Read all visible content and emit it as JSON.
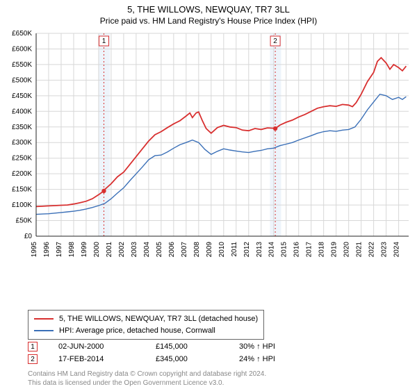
{
  "title": "5, THE WILLOWS, NEWQUAY, TR7 3LL",
  "subtitle": "Price paid vs. HM Land Registry's House Price Index (HPI)",
  "chart": {
    "type": "line",
    "background_color": "#ffffff",
    "grid_color": "#d7d7d7",
    "axis_color": "#222222",
    "tick_fontsize": 10,
    "tick_color": "#000000",
    "x_years": [
      1995,
      1996,
      1997,
      1998,
      1999,
      2000,
      2001,
      2002,
      2003,
      2004,
      2005,
      2006,
      2007,
      2008,
      2009,
      2010,
      2011,
      2012,
      2013,
      2014,
      2015,
      2016,
      2017,
      2018,
      2019,
      2020,
      2021,
      2022,
      2023,
      2024
    ],
    "y_min": 0,
    "y_max": 650000,
    "y_step": 50000,
    "y_prefix": "£",
    "y_suffix_k": "K",
    "highlight_bands": [
      {
        "x_start": 2000.0,
        "x_end": 2000.9,
        "fill": "#eef4fb"
      },
      {
        "x_start": 2013.7,
        "x_end": 2014.6,
        "fill": "#eef4fb"
      }
    ],
    "event_marker_lines": [
      {
        "x": 2000.42,
        "color": "#d82f2f",
        "dash": "2,3"
      },
      {
        "x": 2014.13,
        "color": "#d82f2f",
        "dash": "2,3"
      }
    ],
    "series": [
      {
        "name": "price_paid",
        "color": "#d82f2f",
        "width": 1.8,
        "points": [
          [
            1995.0,
            95000
          ],
          [
            1995.5,
            96000
          ],
          [
            1996.0,
            97000
          ],
          [
            1996.5,
            98000
          ],
          [
            1997.0,
            99000
          ],
          [
            1997.5,
            100000
          ],
          [
            1998.0,
            103000
          ],
          [
            1998.5,
            107000
          ],
          [
            1999.0,
            112000
          ],
          [
            1999.5,
            120000
          ],
          [
            2000.0,
            133000
          ],
          [
            2000.42,
            145000
          ],
          [
            2000.5,
            150000
          ],
          [
            2001.0,
            168000
          ],
          [
            2001.5,
            190000
          ],
          [
            2002.0,
            205000
          ],
          [
            2002.5,
            230000
          ],
          [
            2003.0,
            255000
          ],
          [
            2003.5,
            280000
          ],
          [
            2004.0,
            305000
          ],
          [
            2004.5,
            325000
          ],
          [
            2005.0,
            335000
          ],
          [
            2005.5,
            348000
          ],
          [
            2006.0,
            360000
          ],
          [
            2006.5,
            370000
          ],
          [
            2007.0,
            385000
          ],
          [
            2007.3,
            395000
          ],
          [
            2007.5,
            380000
          ],
          [
            2007.8,
            395000
          ],
          [
            2008.0,
            398000
          ],
          [
            2008.3,
            370000
          ],
          [
            2008.6,
            345000
          ],
          [
            2009.0,
            330000
          ],
          [
            2009.5,
            348000
          ],
          [
            2010.0,
            355000
          ],
          [
            2010.5,
            350000
          ],
          [
            2011.0,
            348000
          ],
          [
            2011.5,
            340000
          ],
          [
            2012.0,
            338000
          ],
          [
            2012.5,
            345000
          ],
          [
            2013.0,
            342000
          ],
          [
            2013.5,
            347000
          ],
          [
            2014.0,
            346000
          ],
          [
            2014.13,
            345000
          ],
          [
            2014.5,
            356000
          ],
          [
            2015.0,
            365000
          ],
          [
            2015.5,
            372000
          ],
          [
            2016.0,
            382000
          ],
          [
            2016.5,
            390000
          ],
          [
            2017.0,
            400000
          ],
          [
            2017.5,
            410000
          ],
          [
            2018.0,
            415000
          ],
          [
            2018.5,
            418000
          ],
          [
            2019.0,
            416000
          ],
          [
            2019.5,
            422000
          ],
          [
            2020.0,
            420000
          ],
          [
            2020.3,
            415000
          ],
          [
            2020.6,
            428000
          ],
          [
            2021.0,
            455000
          ],
          [
            2021.5,
            495000
          ],
          [
            2022.0,
            525000
          ],
          [
            2022.3,
            560000
          ],
          [
            2022.6,
            572000
          ],
          [
            2023.0,
            555000
          ],
          [
            2023.3,
            535000
          ],
          [
            2023.6,
            550000
          ],
          [
            2024.0,
            540000
          ],
          [
            2024.3,
            530000
          ],
          [
            2024.6,
            545000
          ]
        ]
      },
      {
        "name": "hpi",
        "color": "#3a6fb7",
        "width": 1.4,
        "points": [
          [
            1995.0,
            70000
          ],
          [
            1995.5,
            71000
          ],
          [
            1996.0,
            72000
          ],
          [
            1996.5,
            74000
          ],
          [
            1997.0,
            76000
          ],
          [
            1997.5,
            78000
          ],
          [
            1998.0,
            80000
          ],
          [
            1998.5,
            83000
          ],
          [
            1999.0,
            87000
          ],
          [
            1999.5,
            92000
          ],
          [
            2000.0,
            98000
          ],
          [
            2000.5,
            105000
          ],
          [
            2001.0,
            120000
          ],
          [
            2001.5,
            138000
          ],
          [
            2002.0,
            155000
          ],
          [
            2002.5,
            178000
          ],
          [
            2003.0,
            200000
          ],
          [
            2003.5,
            222000
          ],
          [
            2004.0,
            245000
          ],
          [
            2004.5,
            258000
          ],
          [
            2005.0,
            260000
          ],
          [
            2005.5,
            270000
          ],
          [
            2006.0,
            282000
          ],
          [
            2006.5,
            293000
          ],
          [
            2007.0,
            300000
          ],
          [
            2007.5,
            308000
          ],
          [
            2008.0,
            300000
          ],
          [
            2008.5,
            278000
          ],
          [
            2009.0,
            262000
          ],
          [
            2009.5,
            272000
          ],
          [
            2010.0,
            280000
          ],
          [
            2010.5,
            276000
          ],
          [
            2011.0,
            273000
          ],
          [
            2011.5,
            270000
          ],
          [
            2012.0,
            268000
          ],
          [
            2012.5,
            272000
          ],
          [
            2013.0,
            275000
          ],
          [
            2013.5,
            280000
          ],
          [
            2014.0,
            282000
          ],
          [
            2014.5,
            290000
          ],
          [
            2015.0,
            295000
          ],
          [
            2015.5,
            300000
          ],
          [
            2016.0,
            308000
          ],
          [
            2016.5,
            315000
          ],
          [
            2017.0,
            322000
          ],
          [
            2017.5,
            330000
          ],
          [
            2018.0,
            335000
          ],
          [
            2018.5,
            338000
          ],
          [
            2019.0,
            336000
          ],
          [
            2019.5,
            340000
          ],
          [
            2020.0,
            342000
          ],
          [
            2020.5,
            350000
          ],
          [
            2021.0,
            375000
          ],
          [
            2021.5,
            405000
          ],
          [
            2022.0,
            430000
          ],
          [
            2022.5,
            455000
          ],
          [
            2023.0,
            450000
          ],
          [
            2023.5,
            438000
          ],
          [
            2024.0,
            445000
          ],
          [
            2024.3,
            438000
          ],
          [
            2024.6,
            447000
          ]
        ]
      }
    ],
    "event_points": [
      {
        "x": 2000.42,
        "y": 145000,
        "fill": "#d82f2f",
        "r": 3.2
      },
      {
        "x": 2014.13,
        "y": 345000,
        "fill": "#d82f2f",
        "r": 3.2
      }
    ],
    "event_labels": [
      {
        "x": 2000.42,
        "text": "1",
        "border": "#d82f2f"
      },
      {
        "x": 2014.13,
        "text": "2",
        "border": "#d82f2f"
      }
    ]
  },
  "legend": {
    "items": [
      {
        "color": "#d82f2f",
        "label": "5, THE WILLOWS, NEWQUAY, TR7 3LL (detached house)"
      },
      {
        "color": "#3a6fb7",
        "label": "HPI: Average price, detached house, Cornwall"
      }
    ]
  },
  "events_table": {
    "rows": [
      {
        "n": "1",
        "border": "#d82f2f",
        "date": "02-JUN-2000",
        "price": "£145,000",
        "delta": "30% ↑ HPI"
      },
      {
        "n": "2",
        "border": "#d82f2f",
        "date": "17-FEB-2014",
        "price": "£345,000",
        "delta": "24% ↑ HPI"
      }
    ]
  },
  "footer": {
    "line1": "Contains HM Land Registry data © Crown copyright and database right 2024.",
    "line2": "This data is licensed under the Open Government Licence v3.0."
  }
}
